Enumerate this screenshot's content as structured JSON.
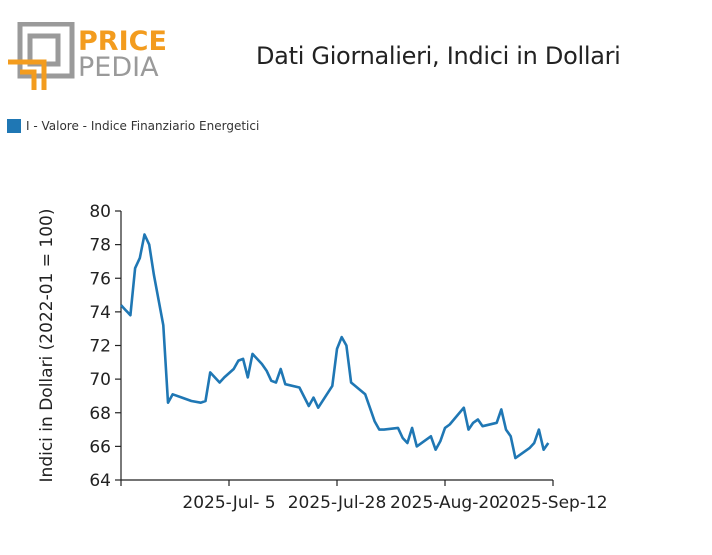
{
  "logo": {
    "word1": "PRICE",
    "word2": "PEDIA",
    "color_orange": "#f39c1e",
    "color_gray": "#9a9a9a"
  },
  "title": "Dati Giornalieri, Indici in Dollari",
  "legend": {
    "label": "I - Valore - Indice Finanziario Energetici",
    "color": "#1f77b4"
  },
  "chart_data": {
    "type": "line",
    "title": "Dati Giornalieri, Indici in Dollari",
    "xlabel": "",
    "ylabel": "Indici in Dollari (2022-01 = 100)",
    "ylim": [
      64,
      80
    ],
    "yticks": [
      64,
      66,
      68,
      70,
      72,
      74,
      76,
      78,
      80
    ],
    "xticks": [
      {
        "date": "2025-07-05",
        "label": "2025-Jul- 5"
      },
      {
        "date": "2025-07-28",
        "label": "2025-Jul-28"
      },
      {
        "date": "2025-08-20",
        "label": "2025-Aug-20"
      },
      {
        "date": "2025-09-12",
        "label": "2025-Sep-12"
      }
    ],
    "xlim": [
      "2025-06-12",
      "2025-09-12"
    ],
    "grid": false,
    "legend_position": "top-left",
    "series": [
      {
        "name": "I - Valore - Indice Finanziario Energetici",
        "color": "#1f77b4",
        "points": [
          [
            "2025-06-12",
            74.4
          ],
          [
            "2025-06-13",
            74.1
          ],
          [
            "2025-06-14",
            73.8
          ],
          [
            "2025-06-15",
            76.6
          ],
          [
            "2025-06-16",
            77.2
          ],
          [
            "2025-06-17",
            78.6
          ],
          [
            "2025-06-18",
            78.0
          ],
          [
            "2025-06-19",
            76.2
          ],
          [
            "2025-06-21",
            73.2
          ],
          [
            "2025-06-22",
            68.6
          ],
          [
            "2025-06-23",
            69.1
          ],
          [
            "2025-06-25",
            68.9
          ],
          [
            "2025-06-27",
            68.7
          ],
          [
            "2025-06-29",
            68.6
          ],
          [
            "2025-06-30",
            68.7
          ],
          [
            "2025-07-01",
            70.4
          ],
          [
            "2025-07-03",
            69.8
          ],
          [
            "2025-07-04",
            70.1
          ],
          [
            "2025-07-06",
            70.6
          ],
          [
            "2025-07-07",
            71.1
          ],
          [
            "2025-07-08",
            71.2
          ],
          [
            "2025-07-09",
            70.1
          ],
          [
            "2025-07-10",
            71.5
          ],
          [
            "2025-07-12",
            70.9
          ],
          [
            "2025-07-13",
            70.5
          ],
          [
            "2025-07-14",
            69.9
          ],
          [
            "2025-07-15",
            69.8
          ],
          [
            "2025-07-16",
            70.6
          ],
          [
            "2025-07-17",
            69.7
          ],
          [
            "2025-07-20",
            69.5
          ],
          [
            "2025-07-22",
            68.4
          ],
          [
            "2025-07-23",
            68.9
          ],
          [
            "2025-07-24",
            68.3
          ],
          [
            "2025-07-27",
            69.6
          ],
          [
            "2025-07-28",
            71.8
          ],
          [
            "2025-07-29",
            72.5
          ],
          [
            "2025-07-30",
            72.0
          ],
          [
            "2025-07-31",
            69.8
          ],
          [
            "2025-08-03",
            69.1
          ],
          [
            "2025-08-04",
            68.3
          ],
          [
            "2025-08-05",
            67.5
          ],
          [
            "2025-08-06",
            67.0
          ],
          [
            "2025-08-07",
            67.0
          ],
          [
            "2025-08-10",
            67.1
          ],
          [
            "2025-08-11",
            66.5
          ],
          [
            "2025-08-12",
            66.2
          ],
          [
            "2025-08-13",
            67.1
          ],
          [
            "2025-08-14",
            66.0
          ],
          [
            "2025-08-17",
            66.6
          ],
          [
            "2025-08-18",
            65.8
          ],
          [
            "2025-08-19",
            66.3
          ],
          [
            "2025-08-20",
            67.1
          ],
          [
            "2025-08-21",
            67.3
          ],
          [
            "2025-08-24",
            68.3
          ],
          [
            "2025-08-25",
            67.0
          ],
          [
            "2025-08-26",
            67.4
          ],
          [
            "2025-08-27",
            67.6
          ],
          [
            "2025-08-28",
            67.2
          ],
          [
            "2025-08-31",
            67.4
          ],
          [
            "2025-09-01",
            68.2
          ],
          [
            "2025-09-02",
            67.0
          ],
          [
            "2025-09-03",
            66.6
          ],
          [
            "2025-09-04",
            65.3
          ],
          [
            "2025-09-07",
            65.9
          ],
          [
            "2025-09-08",
            66.2
          ],
          [
            "2025-09-09",
            67.0
          ],
          [
            "2025-09-10",
            65.8
          ],
          [
            "2025-09-11",
            66.2
          ]
        ]
      }
    ]
  }
}
